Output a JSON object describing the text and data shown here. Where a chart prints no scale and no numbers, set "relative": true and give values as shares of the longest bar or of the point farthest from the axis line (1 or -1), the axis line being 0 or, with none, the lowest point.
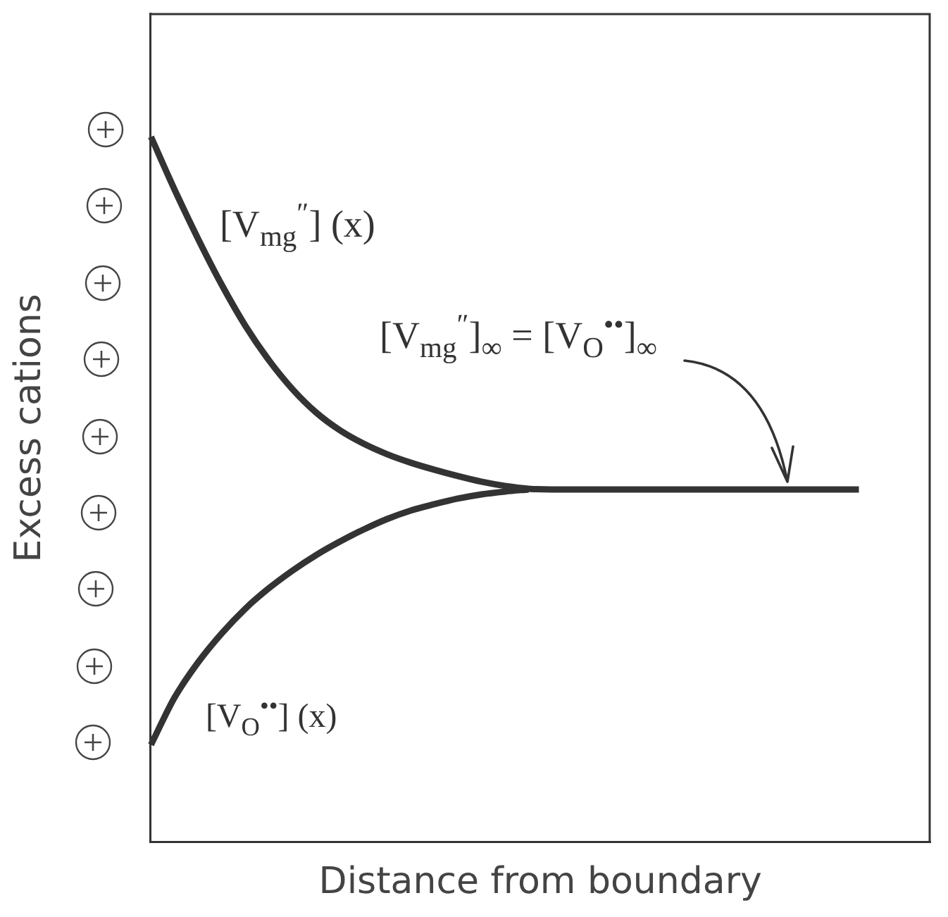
{
  "chart_data": {
    "type": "line",
    "xlabel": "Distance from boundary",
    "ylabel": "Excess cations",
    "relative": true,
    "tick_labels": false,
    "marker": "none",
    "categories": [
      null,
      null,
      null,
      null,
      null,
      null,
      null,
      null,
      null,
      null,
      null,
      null,
      null,
      null,
      null,
      null,
      null,
      null,
      null,
      null,
      null,
      null,
      null,
      null,
      null,
      null,
      null,
      null,
      null,
      null,
      null,
      null,
      null,
      null
    ],
    "series": [
      {
        "name": "[V$_{mg}$$^{″}$] (x)",
        "color": "#333333",
        "values": [
          1,
          0.925,
          0.855,
          0.79,
          0.732,
          0.683,
          0.642,
          0.609,
          0.584,
          0.565,
          0.55,
          0.538,
          0.528,
          0.519,
          0.511,
          0.505,
          0.501,
          0.5,
          0.5,
          0.5,
          0.5,
          0.5,
          0.5,
          0.5,
          0.5,
          0.5,
          0.5,
          0.5,
          0.5,
          0.5,
          0.5,
          null,
          null,
          null
        ]
      },
      {
        "name": "[V$_{O}$$^{••}$] (x)",
        "color": "#333333",
        "values": [
          0.138,
          0.205,
          0.255,
          0.296,
          0.331,
          0.36,
          0.385,
          0.407,
          0.426,
          0.443,
          0.458,
          0.47,
          0.479,
          0.487,
          0.493,
          0.497,
          0.5,
          null,
          null,
          null,
          null,
          null,
          null,
          null,
          null,
          null,
          null,
          null,
          null,
          null,
          null,
          null,
          null,
          null
        ]
      }
    ],
    "annotations": [
      "[V$_{mg}$$^{″}$]$_{∞}$ = [V$_{O}$$^{••}$]$_{∞}$"
    ]
  }
}
